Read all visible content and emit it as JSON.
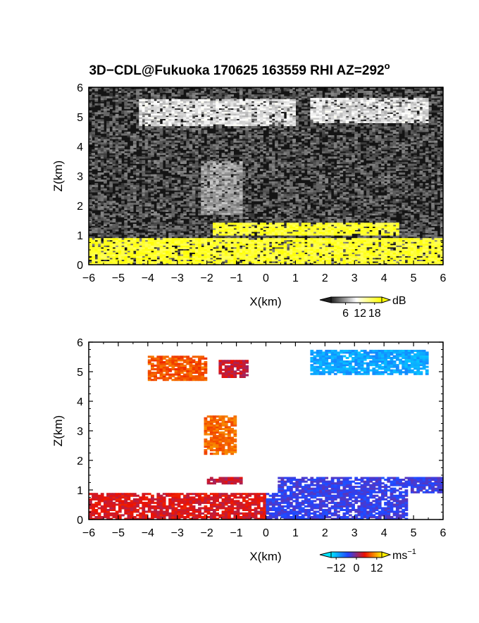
{
  "figure": {
    "title": "3D−CDL@Fukuoka 170625 163559 RHI AZ=292",
    "title_superscript": "o"
  },
  "chart_data": [
    {
      "type": "heatmap",
      "name": "reflectivity",
      "xlabel": "X(km)",
      "ylabel": "Z(km)",
      "xlim": [
        -6,
        6
      ],
      "ylim": [
        0,
        6
      ],
      "xticks": [
        "−6",
        "−5",
        "−4",
        "−3",
        "−2",
        "−1",
        "0",
        "1",
        "2",
        "3",
        "4",
        "5",
        "6"
      ],
      "yticks": [
        "0",
        "1",
        "2",
        "3",
        "4",
        "5",
        "6"
      ],
      "colorbar": {
        "unit": "dB",
        "tick_labels": [
          "6",
          "12",
          "18"
        ],
        "tick_values": [
          6,
          12,
          18
        ],
        "range": [
          0,
          21
        ],
        "colors": [
          "#202020",
          "#ffffff",
          "#ffff00"
        ]
      },
      "features": [
        {
          "label": "background noise",
          "value_db": 2
        },
        {
          "label": "cloud layer ~5 km",
          "x_range": [
            -4.3,
            1.0
          ],
          "z_range": [
            4.7,
            5.6
          ],
          "value_db": 9
        },
        {
          "label": "cloud layer ~5 km (east)",
          "x_range": [
            1.5,
            5.5
          ],
          "z_range": [
            4.8,
            5.6
          ],
          "value_db": 9
        },
        {
          "label": "fall streak",
          "x_range": [
            -2.2,
            -0.8
          ],
          "z_range": [
            1.7,
            3.5
          ],
          "value_db": 6
        },
        {
          "label": "layer ~1.2 km",
          "x_range": [
            -1.8,
            4.5
          ],
          "z_range": [
            1.0,
            1.4
          ],
          "value_db": 19
        },
        {
          "label": "boundary layer",
          "x_range": [
            -6,
            6
          ],
          "z_range": [
            0,
            0.9
          ],
          "value_db": 19
        }
      ]
    },
    {
      "type": "heatmap",
      "name": "doppler velocity",
      "xlabel": "X(km)",
      "ylabel": "Z(km)",
      "xlim": [
        -6,
        6
      ],
      "ylim": [
        0,
        6
      ],
      "xticks": [
        "−6",
        "−5",
        "−4",
        "−3",
        "−2",
        "−1",
        "0",
        "1",
        "2",
        "3",
        "4",
        "5",
        "6"
      ],
      "yticks": [
        "0",
        "1",
        "2",
        "3",
        "4",
        "5",
        "6"
      ],
      "colorbar": {
        "unit": "ms",
        "unit_superscript": "−1",
        "tick_labels": [
          "−12",
          "0",
          "12"
        ],
        "tick_values": [
          -12,
          0,
          12
        ],
        "range": [
          -15,
          15
        ],
        "colors": [
          "#00e5ff",
          "#2244ff",
          "#ee1100",
          "#ffee00"
        ]
      },
      "features": [
        {
          "label": "cloud ~5 km west",
          "x_range": [
            -4.0,
            -2.0
          ],
          "z_range": [
            4.7,
            5.5
          ],
          "velocity": 8
        },
        {
          "label": "cloud ~5 km center",
          "x_range": [
            -1.6,
            -0.6
          ],
          "z_range": [
            4.8,
            5.4
          ],
          "velocity": 3
        },
        {
          "label": "cloud ~5 km east",
          "x_range": [
            1.5,
            5.5
          ],
          "z_range": [
            4.9,
            5.7
          ],
          "velocity": -11
        },
        {
          "label": "fall streak",
          "x_range": [
            -2.1,
            -1.0
          ],
          "z_range": [
            2.2,
            3.5
          ],
          "velocity": 9
        },
        {
          "label": "layer west ~1.3 km",
          "x_range": [
            -2.0,
            -0.8
          ],
          "z_range": [
            1.2,
            1.4
          ],
          "velocity": 3
        },
        {
          "label": "boundary layer west",
          "x_range": [
            -6,
            0
          ],
          "z_range": [
            0,
            0.9
          ],
          "velocity": 4
        },
        {
          "label": "layer east ~1.2 km",
          "x_range": [
            0.4,
            6
          ],
          "z_range": [
            0.9,
            1.4
          ],
          "velocity": -4
        },
        {
          "label": "boundary layer east",
          "x_range": [
            0,
            4.8
          ],
          "z_range": [
            0,
            0.9
          ],
          "velocity": -4
        }
      ]
    }
  ]
}
